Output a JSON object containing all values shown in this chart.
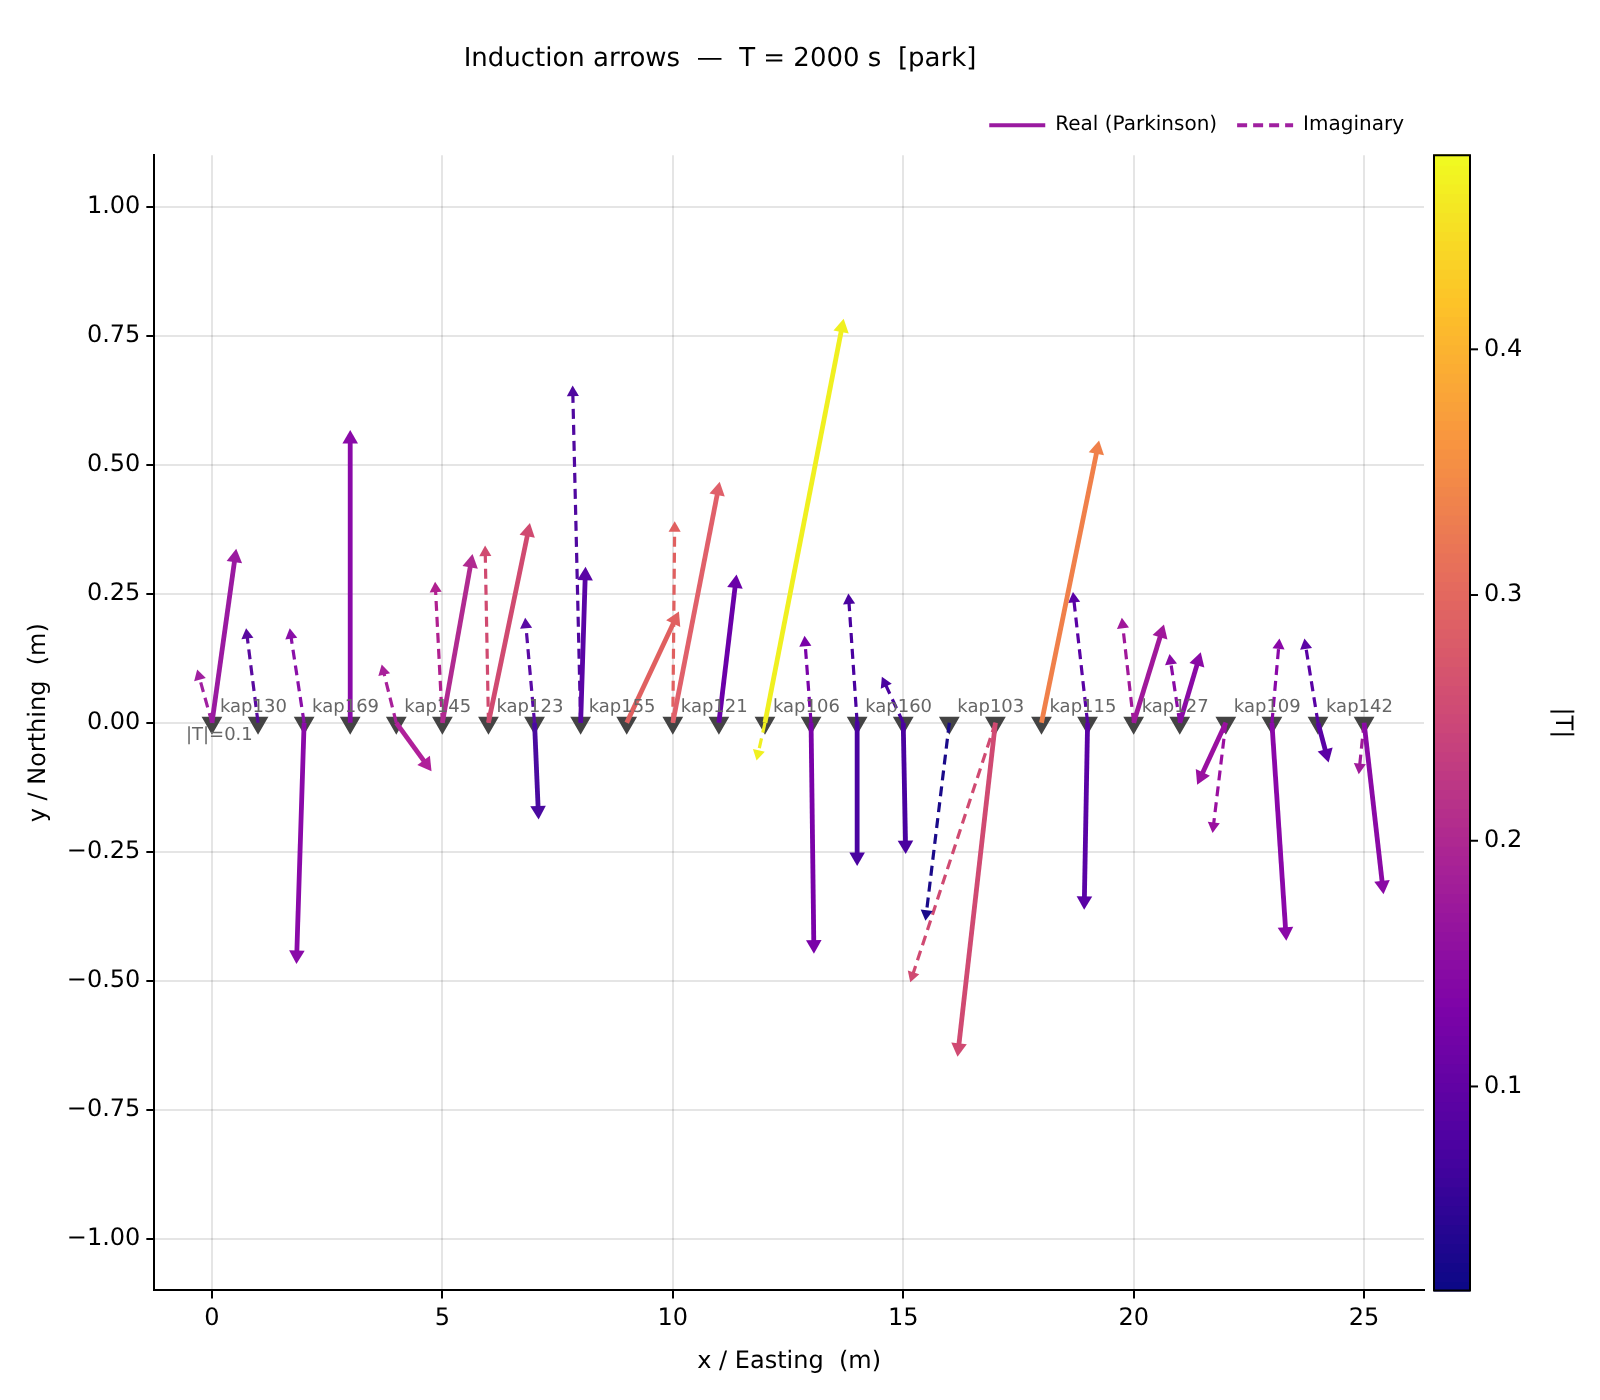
{
  "chart_data": {
    "type": "line",
    "title": "Induction arrows  —  T = 2000 s  [park]",
    "xlabel": "x / Easting  (m)",
    "ylabel": "y / Northing  (m)",
    "clabel": "|T|",
    "xlim": [
      -1.25,
      26.3
    ],
    "xticks": [
      0,
      5,
      10,
      15,
      20,
      25
    ],
    "ylim": [
      -1.1,
      1.1
    ],
    "yticks": [
      {
        "value": -1,
        "label": "−1.00"
      },
      {
        "value": -0.75,
        "label": "−0.75"
      },
      {
        "value": -0.5,
        "label": "−0.50"
      },
      {
        "value": -0.25,
        "label": "−0.25"
      },
      {
        "value": 0,
        "label": "0.00"
      },
      {
        "value": 0.25,
        "label": "0.25"
      },
      {
        "value": 0.5,
        "label": "0.50"
      },
      {
        "value": 0.75,
        "label": "0.75"
      },
      {
        "value": 1,
        "label": "1.00"
      }
    ],
    "grid": true,
    "legend": "top right",
    "clim": [
      0.017,
      0.479
    ],
    "cticks": [
      0.1,
      0.2,
      0.3,
      0.4
    ],
    "annotations": [
      {
        "text": "|T|=0.1",
        "x": 0,
        "y": 0
      },
      {
        "text": "kap130",
        "x": 0,
        "y": 0
      },
      {
        "text": "kap169",
        "x": 2,
        "y": 0
      },
      {
        "text": "kap145",
        "x": 4,
        "y": 0
      },
      {
        "text": "kap123",
        "x": 6,
        "y": 0
      },
      {
        "text": "kap155",
        "x": 8,
        "y": 0
      },
      {
        "text": "kap121",
        "x": 10,
        "y": 0
      },
      {
        "text": "kap106",
        "x": 12,
        "y": 0
      },
      {
        "text": "kap160",
        "x": 14,
        "y": 0
      },
      {
        "text": "kap103",
        "x": 16,
        "y": 0
      },
      {
        "text": "kap115",
        "x": 18,
        "y": 0
      },
      {
        "text": "kap127",
        "x": 20,
        "y": 0
      },
      {
        "text": "kap109",
        "x": 22,
        "y": 0
      },
      {
        "text": "kap142",
        "x": 24,
        "y": 0
      }
    ],
    "series": [
      {
        "name": "Real (Parkinson)",
        "color": "#9a1aa0",
        "line_style": "solid",
        "marker": "triangle",
        "x": [
          0,
          0.5
        ],
        "values": [
          0,
          0.32
        ]
      },
      {
        "name": "Imaginary",
        "color": "#a020a0",
        "line_style": "dashed",
        "marker": "triangle",
        "x": [
          0,
          -0.28
        ],
        "values": [
          0,
          0.09
        ]
      },
      {
        "color": "#5a0aa0",
        "line_style": "dashed",
        "marker": "triangle",
        "x": [
          1,
          0.76
        ],
        "values": [
          0,
          0.17
        ]
      },
      {
        "color": "#8a0aa8",
        "line_style": "solid",
        "marker": "triangle",
        "x": [
          2,
          1.84
        ],
        "values": [
          0,
          -0.45
        ]
      },
      {
        "color": "#8a10a8",
        "line_style": "dashed",
        "marker": "triangle",
        "x": [
          2,
          1.71
        ],
        "values": [
          0,
          0.17
        ]
      },
      {
        "color": "#8a0aa8",
        "line_style": "solid",
        "marker": "triangle",
        "x": [
          3,
          3
        ],
        "values": [
          0,
          0.55
        ]
      },
      {
        "color": "#b0209a",
        "line_style": "solid",
        "marker": "triangle",
        "x": [
          4,
          4.65
        ],
        "values": [
          0,
          -0.08
        ]
      },
      {
        "color": "#a8209a",
        "line_style": "dashed",
        "marker": "triangle",
        "x": [
          4,
          3.72
        ],
        "values": [
          0,
          0.1
        ]
      },
      {
        "color": "#b02a90",
        "line_style": "solid",
        "marker": "triangle",
        "x": [
          5,
          5.62
        ],
        "values": [
          0,
          0.31
        ]
      },
      {
        "color": "#b0208f",
        "line_style": "dashed",
        "marker": "triangle",
        "x": [
          5,
          4.85
        ],
        "values": [
          0,
          0.26
        ]
      },
      {
        "color": "#d04a70",
        "line_style": "solid",
        "marker": "triangle",
        "x": [
          6,
          6.86
        ],
        "values": [
          0,
          0.37
        ]
      },
      {
        "color": "#d04a70",
        "line_style": "dashed",
        "marker": "triangle",
        "x": [
          6,
          5.93
        ],
        "values": [
          0,
          0.33
        ]
      },
      {
        "color": "#4a0aa0",
        "line_style": "solid",
        "marker": "triangle",
        "x": [
          7,
          7.08
        ],
        "values": [
          0,
          -0.17
        ]
      },
      {
        "color": "#5a0aa5",
        "line_style": "dashed",
        "marker": "triangle",
        "x": [
          7,
          6.81
        ],
        "values": [
          0,
          0.19
        ]
      },
      {
        "color": "#5a05a5",
        "line_style": "solid",
        "marker": "triangle",
        "x": [
          8,
          8.1
        ],
        "values": [
          0,
          0.285
        ]
      },
      {
        "color": "#5008a0",
        "line_style": "dashed",
        "marker": "triangle",
        "x": [
          8,
          7.83
        ],
        "values": [
          0,
          0.64
        ]
      },
      {
        "color": "#e06060",
        "line_style": "solid",
        "marker": "triangle",
        "x": [
          9,
          10.05
        ],
        "values": [
          0,
          0.2
        ]
      },
      {
        "color": "#e0606a",
        "line_style": "solid",
        "marker": "triangle",
        "x": [
          10,
          10.98
        ],
        "values": [
          0,
          0.45
        ]
      },
      {
        "color": "#e06060",
        "line_style": "dashed",
        "marker": "triangle",
        "x": [
          10,
          10.04
        ],
        "values": [
          0,
          0.377
        ]
      },
      {
        "color": "#6a00a8",
        "line_style": "solid",
        "marker": "triangle",
        "x": [
          11,
          11.36
        ],
        "values": [
          0,
          0.27
        ]
      },
      {
        "color": "#f0f020",
        "line_style": "solid",
        "marker": "triangle",
        "x": [
          12,
          13.67
        ],
        "values": [
          0,
          0.766
        ]
      },
      {
        "color": "#f0f020",
        "line_style": "dashed",
        "marker": "triangle",
        "x": [
          12,
          11.85
        ],
        "values": [
          0,
          -0.06
        ]
      },
      {
        "color": "#7a02a8",
        "line_style": "solid",
        "marker": "triangle",
        "x": [
          13,
          13.06
        ],
        "values": [
          0,
          -0.43
        ]
      },
      {
        "color": "#7a02a8",
        "line_style": "dashed",
        "marker": "triangle",
        "x": [
          13,
          12.87
        ],
        "values": [
          0,
          0.155
        ]
      },
      {
        "color": "#4a02a0",
        "line_style": "solid",
        "marker": "triangle",
        "x": [
          14,
          14
        ],
        "values": [
          0,
          -0.26
        ]
      },
      {
        "color": "#4a02a0",
        "line_style": "dashed",
        "marker": "triangle",
        "x": [
          14,
          13.82
        ],
        "values": [
          0,
          0.237
        ]
      },
      {
        "color": "#4a02a0",
        "line_style": "solid",
        "marker": "triangle",
        "x": [
          15,
          15.05
        ],
        "values": [
          0,
          -0.237
        ]
      },
      {
        "color": "#4a02a0",
        "line_style": "dashed",
        "marker": "triangle",
        "x": [
          15,
          14.6
        ],
        "values": [
          0,
          0.077
        ]
      },
      {
        "color": "#1a0a8a",
        "line_style": "dashed",
        "marker": "triangle",
        "x": [
          16,
          15.5
        ],
        "values": [
          0,
          -0.37
        ]
      },
      {
        "color": "#d04a72",
        "line_style": "solid",
        "marker": "triangle",
        "x": [
          17,
          16.2
        ],
        "values": [
          0,
          -0.63
        ]
      },
      {
        "color": "#d04a72",
        "line_style": "dashed",
        "marker": "triangle",
        "x": [
          17,
          15.2
        ],
        "values": [
          0,
          -0.49
        ]
      },
      {
        "color": "#f0804a",
        "line_style": "solid",
        "marker": "triangle",
        "x": [
          18,
          19.21
        ],
        "values": [
          0,
          0.53
        ]
      },
      {
        "color": "#5a02a5",
        "line_style": "solid",
        "marker": "triangle",
        "x": [
          19,
          18.93
        ],
        "values": [
          0,
          -0.345
        ]
      },
      {
        "color": "#5a02a5",
        "line_style": "dashed",
        "marker": "triangle",
        "x": [
          19,
          18.7
        ],
        "values": [
          0,
          0.24
        ]
      },
      {
        "color": "#a0189a",
        "line_style": "solid",
        "marker": "triangle",
        "x": [
          20,
          20.6
        ],
        "values": [
          0,
          0.174
        ]
      },
      {
        "color": "#a0189a",
        "line_style": "dashed",
        "marker": "triangle",
        "x": [
          20,
          19.76
        ],
        "values": [
          0,
          0.19
        ]
      },
      {
        "color": "#8a0aa5",
        "line_style": "solid",
        "marker": "triangle",
        "x": [
          21,
          21.4
        ],
        "values": [
          0,
          0.12
        ]
      },
      {
        "color": "#8a0aa5",
        "line_style": "dashed",
        "marker": "triangle",
        "x": [
          21,
          20.8
        ],
        "values": [
          0,
          0.12
        ]
      },
      {
        "color": "#9a10a0",
        "line_style": "solid",
        "marker": "triangle",
        "x": [
          22,
          21.46
        ],
        "values": [
          0,
          -0.104
        ]
      },
      {
        "color": "#9a10a0",
        "line_style": "dashed",
        "marker": "triangle",
        "x": [
          22,
          21.73
        ],
        "values": [
          0,
          -0.2
        ]
      },
      {
        "color": "#8a08a8",
        "line_style": "solid",
        "marker": "triangle",
        "x": [
          23,
          23.3
        ],
        "values": [
          0,
          -0.405
        ]
      },
      {
        "color": "#8a08a8",
        "line_style": "dashed",
        "marker": "triangle",
        "x": [
          23,
          23.15
        ],
        "values": [
          0,
          0.15
        ]
      },
      {
        "color": "#5a02a5",
        "line_style": "solid",
        "marker": "triangle",
        "x": [
          24,
          24.18
        ],
        "values": [
          0,
          -0.06
        ]
      },
      {
        "color": "#5a02a5",
        "line_style": "dashed",
        "marker": "triangle",
        "x": [
          24,
          23.73
        ],
        "values": [
          0,
          0.15
        ]
      },
      {
        "color": "#8a0aa5",
        "line_style": "solid",
        "marker": "triangle",
        "x": [
          25,
          25.4
        ],
        "values": [
          0,
          -0.315
        ]
      },
      {
        "color": "#a01a9a",
        "line_style": "dashed",
        "marker": "triangle",
        "x": [
          25,
          24.9
        ],
        "values": [
          0,
          -0.086
        ]
      },
      {
        "type": "scatter",
        "color": "#444444",
        "marker": "triangle",
        "x": [
          0,
          1,
          2,
          3,
          4,
          5,
          6,
          7,
          8,
          9,
          10,
          11,
          12,
          13,
          14,
          15,
          16,
          17,
          18,
          19,
          20,
          21,
          22,
          23,
          24,
          25
        ],
        "values": [
          0,
          0,
          0,
          0,
          0,
          0,
          0,
          0,
          0,
          0,
          0,
          0,
          0,
          0,
          0,
          0,
          0,
          0,
          0,
          0,
          0,
          0,
          0,
          0,
          0,
          0
        ]
      }
    ]
  }
}
